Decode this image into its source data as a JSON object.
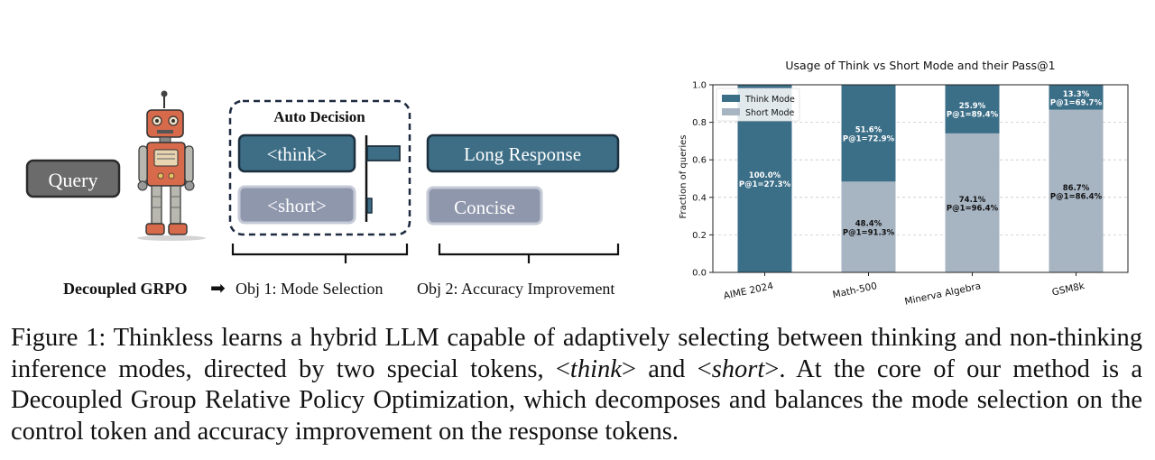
{
  "diagram": {
    "query_label": "Query",
    "auto_decision_title": "Auto Decision",
    "think_token": "<think>",
    "short_token": "<short>",
    "long_response_label": "Long Response",
    "concise_label": "Concise",
    "grpo_label": "Decoupled GRPO",
    "obj1_label": "Obj 1: Mode Selection",
    "obj2_label": "Obj 2: Accuracy Improvement",
    "colors": {
      "teal": "#3d6e86",
      "gray_box": "#8f97ac",
      "query_box": "#6b6b6b"
    }
  },
  "chart_data": {
    "type": "bar",
    "stacked": true,
    "title": "Usage of Think vs Short Mode and their Pass@1",
    "xlabel": "",
    "ylabel": "Fraction of queries",
    "ylim": [
      0,
      1.0
    ],
    "yticks": [
      "0.0",
      "0.2",
      "0.4",
      "0.6",
      "0.8",
      "1.0"
    ],
    "categories": [
      "AIME 2024",
      "Math-500",
      "Minerva Algebra",
      "GSM8k"
    ],
    "grid": true,
    "legend_position": "top-left",
    "series": [
      {
        "name": "Short Mode",
        "color": "#a7b4c2",
        "values": [
          0.0,
          0.484,
          0.741,
          0.867
        ],
        "labels": [
          "",
          "48.4%\nP@1=91.3%",
          "74.1%\nP@1=96.4%",
          "86.7%\nP@1=86.4%"
        ]
      },
      {
        "name": "Think Mode",
        "color": "#3b6e87",
        "values": [
          1.0,
          0.516,
          0.259,
          0.133
        ],
        "labels": [
          "100.0%\nP@1=27.3%",
          "51.6%\nP@1=72.9%",
          "25.9%\nP@1=89.4%",
          "13.3%\nP@1=69.7%"
        ]
      }
    ]
  },
  "caption": {
    "part1": "Figure 1: Thinkless learns a hybrid LLM capable of adaptively selecting between thinking and non-thinking inference modes, directed by two special tokens, <",
    "think_em": "think",
    "part2": "> and <",
    "short_em": "short",
    "part3": ">. At the core of our method is a Decoupled Group Relative Policy Optimization, which decomposes and balances the mode selection on the control token and accuracy improvement on the response tokens."
  }
}
